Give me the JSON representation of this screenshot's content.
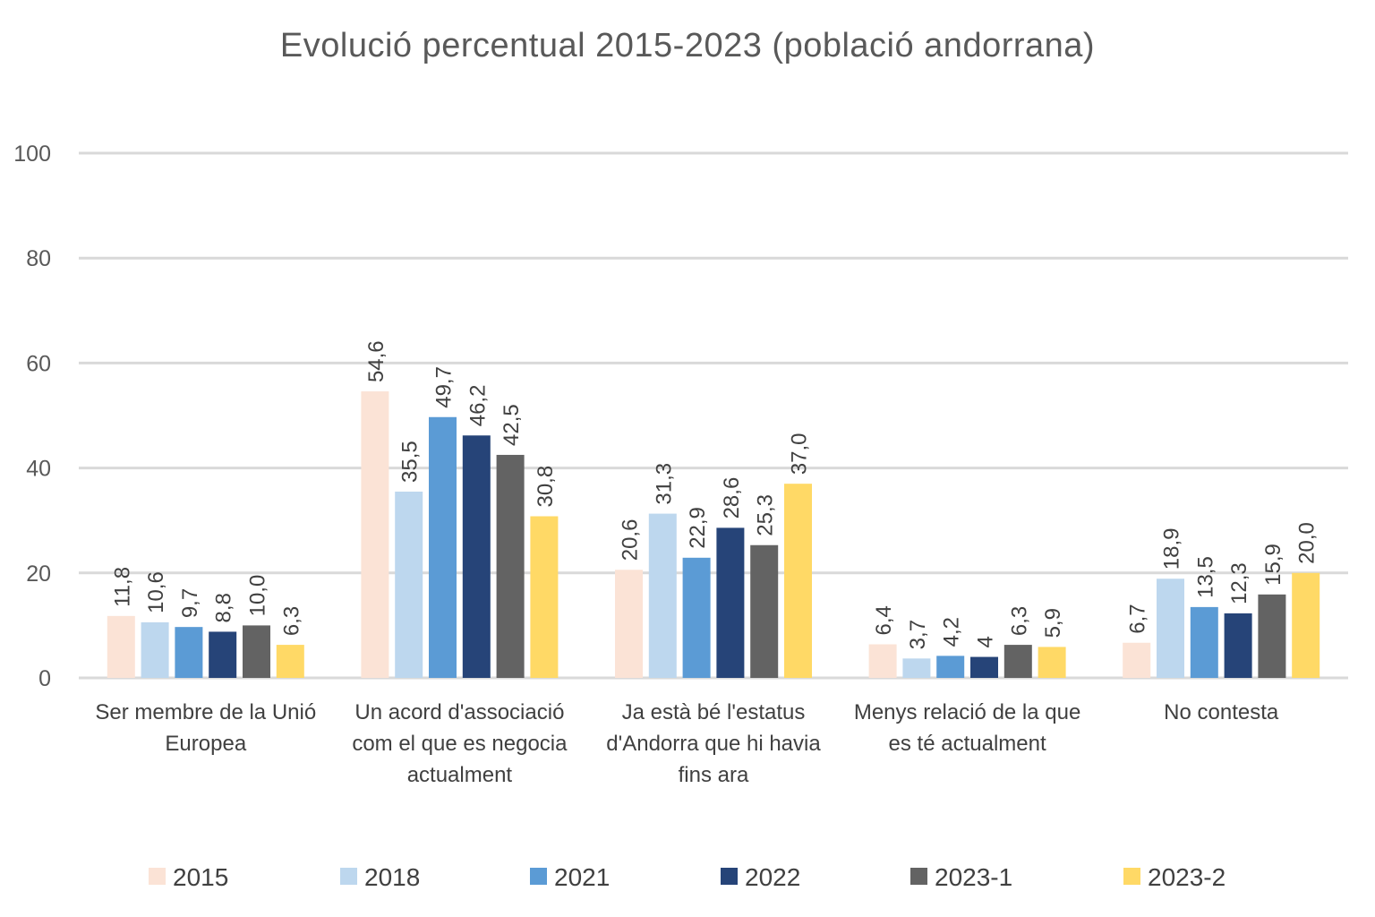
{
  "chart_data": {
    "type": "bar",
    "title": "Evolució percentual 2015-2023 (població andorrana)",
    "categories": [
      [
        "Ser membre de la Unió",
        "Europea"
      ],
      [
        "Un acord d'associació",
        "com el que es negocia",
        "actualment"
      ],
      [
        "Ja està bé l'estatus",
        "d'Andorra que hi havia",
        "fins ara"
      ],
      [
        "Menys relació de la que",
        "es té actualment"
      ],
      [
        "No contesta"
      ]
    ],
    "series": [
      {
        "name": "2015",
        "color": "#FBE3D6",
        "values": [
          11.8,
          54.6,
          20.6,
          6.4,
          6.7
        ],
        "labels": [
          "11,8",
          "54,6",
          "20,6",
          "6,4",
          "6,7"
        ]
      },
      {
        "name": "2018",
        "color": "#BDD7EE",
        "values": [
          10.6,
          35.5,
          31.3,
          3.7,
          18.9
        ],
        "labels": [
          "10,6",
          "35,5",
          "31,3",
          "3,7",
          "18,9"
        ]
      },
      {
        "name": "2021",
        "color": "#5B9BD5",
        "values": [
          9.7,
          49.7,
          22.9,
          4.2,
          13.5
        ],
        "labels": [
          "9,7",
          "49,7",
          "22,9",
          "4,2",
          "13,5"
        ]
      },
      {
        "name": "2022",
        "color": "#264478",
        "values": [
          8.8,
          46.2,
          28.6,
          4,
          12.3
        ],
        "labels": [
          "8,8",
          "46,2",
          "28,6",
          "4",
          "12,3"
        ]
      },
      {
        "name": "2023-1",
        "color": "#636363",
        "values": [
          10.0,
          42.5,
          25.3,
          6.3,
          15.9
        ],
        "labels": [
          "10,0",
          "42,5",
          "25,3",
          "6,3",
          "15,9"
        ]
      },
      {
        "name": "2023-2",
        "color": "#FFD966",
        "values": [
          6.3,
          30.8,
          37.0,
          5.9,
          20.0
        ],
        "labels": [
          "6,3",
          "30,8",
          "37,0",
          "5,9",
          "20,0"
        ]
      }
    ],
    "ylim": [
      0,
      100
    ],
    "yticks": [
      "0",
      "20",
      "40",
      "60",
      "80",
      "100"
    ],
    "grid": true,
    "legend_position": "bottom"
  }
}
